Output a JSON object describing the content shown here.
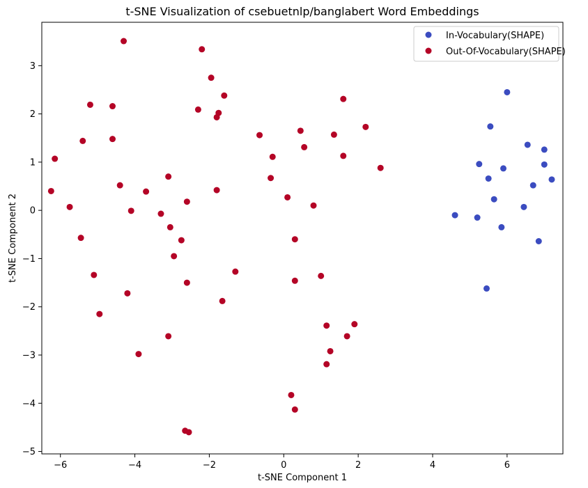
{
  "chart_data": {
    "type": "scatter",
    "title": "t-SNE Visualization of csebuetnlp/banglabert Word Embeddings",
    "xlabel": "t-SNE Component 1",
    "ylabel": "t-SNE Component 2",
    "xlim": [
      -6.5,
      7.5
    ],
    "ylim": [
      -5.05,
      3.9
    ],
    "xticks": [
      -6,
      -4,
      -2,
      0,
      2,
      4,
      6
    ],
    "yticks": [
      -5,
      -4,
      -3,
      -2,
      -1,
      0,
      1,
      2,
      3
    ],
    "grid": false,
    "legend_position": "top-right",
    "series": [
      {
        "name": "In-Vocabulary(SHAPE)",
        "color": "#3b4cc0",
        "points": [
          [
            6.0,
            2.45
          ],
          [
            5.55,
            1.74
          ],
          [
            6.55,
            1.36
          ],
          [
            7.0,
            1.26
          ],
          [
            5.25,
            0.96
          ],
          [
            7.0,
            0.95
          ],
          [
            5.9,
            0.87
          ],
          [
            5.5,
            0.66
          ],
          [
            7.2,
            0.64
          ],
          [
            6.7,
            0.52
          ],
          [
            5.65,
            0.23
          ],
          [
            6.45,
            0.07
          ],
          [
            4.6,
            -0.1
          ],
          [
            5.2,
            -0.15
          ],
          [
            5.85,
            -0.35
          ],
          [
            6.85,
            -0.64
          ],
          [
            5.45,
            -1.62
          ]
        ]
      },
      {
        "name": "Out-Of-Vocabulary(SHAPE)",
        "color": "#b40426",
        "points": [
          [
            -4.3,
            3.51
          ],
          [
            -2.2,
            3.34
          ],
          [
            -1.95,
            2.75
          ],
          [
            -1.6,
            2.38
          ],
          [
            -5.2,
            2.19
          ],
          [
            -4.6,
            2.16
          ],
          [
            -2.3,
            2.09
          ],
          [
            -1.75,
            2.02
          ],
          [
            -1.8,
            1.93
          ],
          [
            -5.4,
            1.44
          ],
          [
            -4.6,
            1.48
          ],
          [
            -6.15,
            1.07
          ],
          [
            -6.25,
            0.4
          ],
          [
            -4.4,
            0.52
          ],
          [
            -3.7,
            0.39
          ],
          [
            -3.1,
            0.7
          ],
          [
            -1.8,
            0.42
          ],
          [
            -5.75,
            0.07
          ],
          [
            -4.1,
            -0.01
          ],
          [
            -3.3,
            -0.07
          ],
          [
            -2.6,
            0.18
          ],
          [
            -3.05,
            -0.35
          ],
          [
            -5.45,
            -0.57
          ],
          [
            -2.75,
            -0.62
          ],
          [
            -2.95,
            -0.95
          ],
          [
            -5.1,
            -1.34
          ],
          [
            -1.3,
            -1.27
          ],
          [
            -2.6,
            -1.5
          ],
          [
            -4.2,
            -1.72
          ],
          [
            -1.65,
            -1.88
          ],
          [
            -4.95,
            -2.15
          ],
          [
            -3.1,
            -2.61
          ],
          [
            -3.9,
            -2.98
          ],
          [
            -2.65,
            -4.57
          ],
          [
            -2.55,
            -4.6
          ],
          [
            -0.65,
            1.56
          ],
          [
            0.45,
            1.65
          ],
          [
            1.35,
            1.57
          ],
          [
            1.6,
            2.31
          ],
          [
            2.2,
            1.73
          ],
          [
            -0.3,
            1.11
          ],
          [
            0.55,
            1.31
          ],
          [
            1.6,
            1.13
          ],
          [
            2.6,
            0.88
          ],
          [
            -0.35,
            0.67
          ],
          [
            0.1,
            0.27
          ],
          [
            0.8,
            0.1
          ],
          [
            0.3,
            -0.6
          ],
          [
            1.0,
            -1.36
          ],
          [
            0.3,
            -1.46
          ],
          [
            1.15,
            -2.39
          ],
          [
            1.9,
            -2.36
          ],
          [
            1.7,
            -2.61
          ],
          [
            1.25,
            -2.92
          ],
          [
            1.15,
            -3.19
          ],
          [
            0.2,
            -3.83
          ],
          [
            0.3,
            -4.13
          ]
        ]
      }
    ]
  }
}
